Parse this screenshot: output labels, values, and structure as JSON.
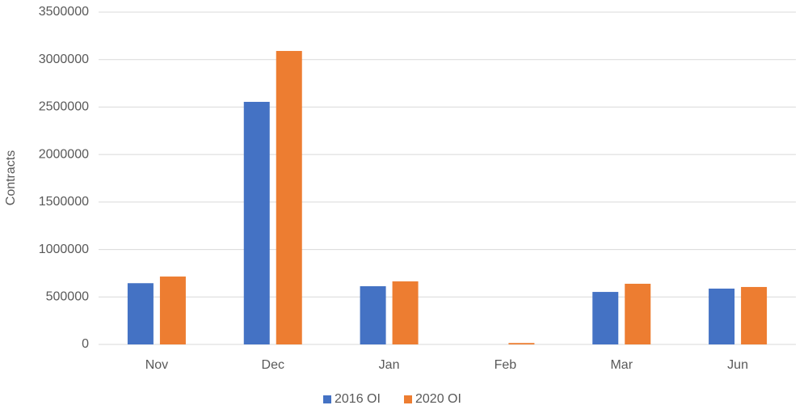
{
  "chart_data": {
    "type": "bar",
    "y_label": "Contracts",
    "categories": [
      "Nov",
      "Dec",
      "Jan",
      "Feb",
      "Mar",
      "Jun"
    ],
    "series": [
      {
        "name": "2016 OI",
        "color": "#4472c4",
        "values": [
          645000,
          2555000,
          613000,
          0,
          553000,
          588000
        ]
      },
      {
        "name": "2020 OI",
        "color": "#ed7d31",
        "values": [
          715000,
          3091000,
          664000,
          15000,
          639000,
          605000
        ]
      }
    ],
    "ylim": [
      0,
      3500000
    ],
    "yticks": [
      0,
      500000,
      1000000,
      1500000,
      2000000,
      2500000,
      3000000,
      3500000
    ],
    "grid": true,
    "legend": "bottom"
  }
}
